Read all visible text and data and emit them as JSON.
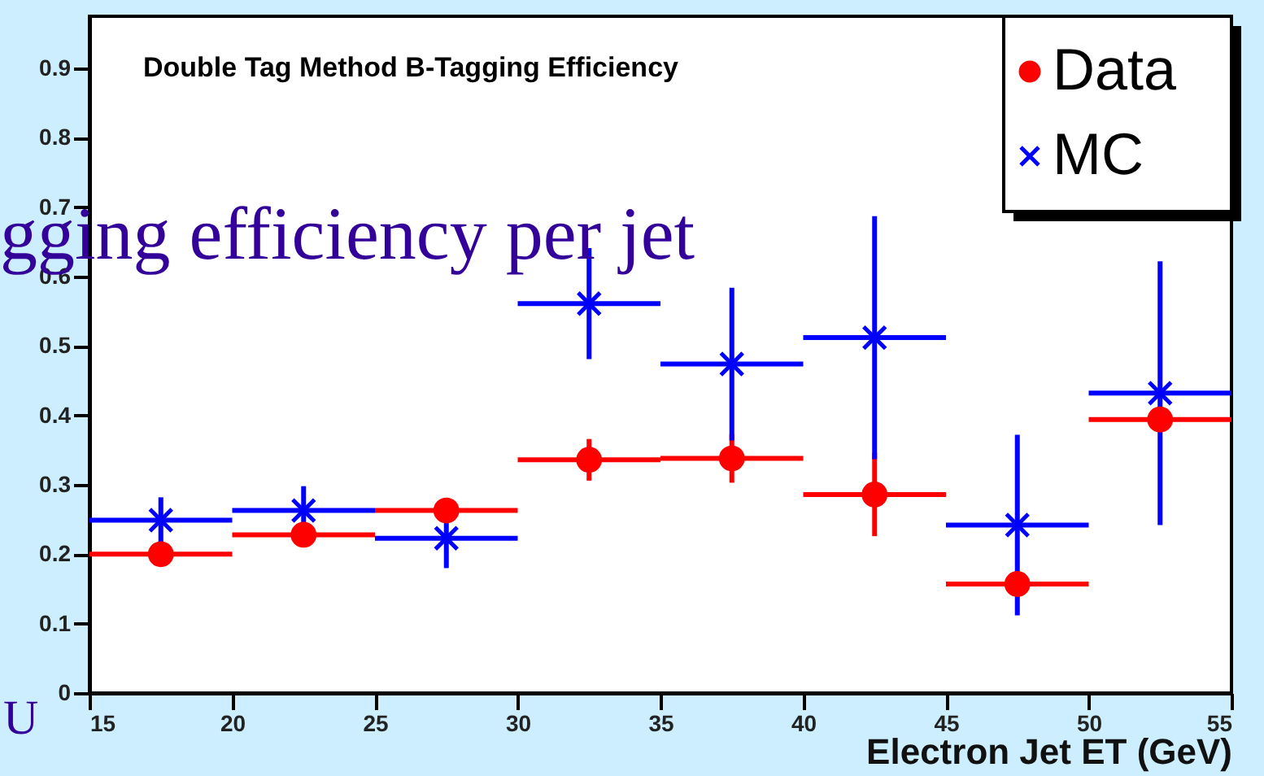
{
  "chart_data": {
    "type": "scatter",
    "title": "Double Tag Method B-Tagging Efficiency",
    "xlabel": "Electron Jet ET (GeV)",
    "x": [
      17.5,
      22.5,
      27.5,
      32.5,
      37.5,
      42.5,
      47.5,
      52.5
    ],
    "series": [
      {
        "name": "Data",
        "color": "#ff0000",
        "marker": "circle",
        "values": [
          0.2,
          0.228,
          0.263,
          0.336,
          0.338,
          0.286,
          0.157,
          0.394
        ],
        "errors": [
          0.01,
          0.01,
          0.01,
          0.03,
          0.035,
          0.06,
          0.01,
          0.01
        ],
        "xerrors": [
          2.5,
          2.5,
          2.5,
          2.5,
          2.5,
          2.5,
          2.5,
          2.5
        ]
      },
      {
        "name": "MC",
        "color": "#0000ff",
        "marker": "cross",
        "values": [
          0.249,
          0.263,
          0.223,
          0.561,
          0.474,
          0.512,
          0.242,
          0.432
        ],
        "errors": [
          0.033,
          0.035,
          0.043,
          0.08,
          0.11,
          0.175,
          0.13,
          0.19
        ],
        "xerrors": [
          2.5,
          2.5,
          2.5,
          2.5,
          2.5,
          2.5,
          2.5,
          2.5
        ]
      }
    ],
    "xlim": [
      15,
      55
    ],
    "xticks": [
      15,
      20,
      25,
      30,
      35,
      40,
      45,
      50,
      55
    ],
    "ylim": [
      0,
      0.975
    ],
    "yticks": [
      {
        "value": 0,
        "label": "0"
      },
      0.1,
      0.2,
      0.3,
      0.4,
      0.5,
      0.6,
      0.7,
      0.8,
      0.9
    ],
    "grid": false,
    "legend": "top right",
    "annotations": [
      "gging efficiency per jet",
      "U"
    ]
  }
}
